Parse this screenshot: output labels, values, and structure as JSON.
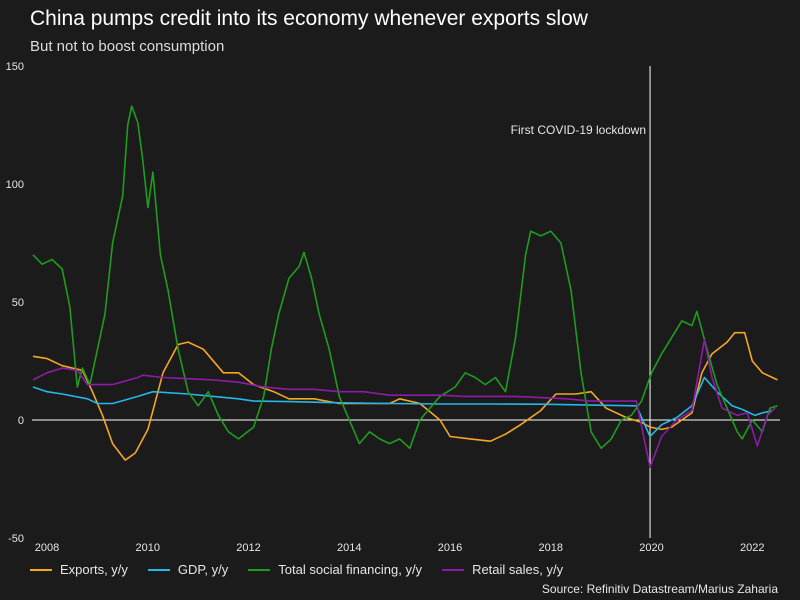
{
  "header": {
    "title": "China pumps credit into its economy whenever exports slow",
    "subtitle": "But not to boost consumption"
  },
  "source": "Source: Refinitiv Datastream/Marius Zaharia",
  "colors": {
    "background": "#1b1b1b",
    "exports": "#f5a623",
    "gdp": "#27b6e8",
    "tsf": "#1e9c1e",
    "retail": "#8c1ca6",
    "axis": "#ffffff"
  },
  "chart_data": {
    "type": "line",
    "title": "China pumps credit into its economy whenever exports slow",
    "subtitle": "But not to boost consumption",
    "xlabel": "",
    "ylabel": "",
    "xlim": [
      2007.9,
      2022.75
    ],
    "ylim": [
      -50,
      150
    ],
    "x_ticks": [
      "2008",
      "2010",
      "2012",
      "2014",
      "2016",
      "2018",
      "2020",
      "2022"
    ],
    "y_ticks": [
      "150",
      "100",
      "50",
      "0",
      "-50"
    ],
    "grid": false,
    "legend_position": "bottom",
    "annotations": [
      {
        "x": 2020.17,
        "text": "First COVID-19 lockdown"
      }
    ],
    "series": [
      {
        "name": "Exports, y/y",
        "color": "#f5a623",
        "points": [
          [
            2007.92,
            27
          ],
          [
            2008.2,
            26
          ],
          [
            2008.5,
            23
          ],
          [
            2008.9,
            21
          ],
          [
            2009.1,
            12
          ],
          [
            2009.3,
            2
          ],
          [
            2009.5,
            -10
          ],
          [
            2009.75,
            -17
          ],
          [
            2009.95,
            -14
          ],
          [
            2010.2,
            -4
          ],
          [
            2010.5,
            20
          ],
          [
            2010.8,
            32
          ],
          [
            2011.0,
            33
          ],
          [
            2011.3,
            30
          ],
          [
            2011.7,
            20
          ],
          [
            2012.0,
            20
          ],
          [
            2012.3,
            15
          ],
          [
            2012.7,
            12
          ],
          [
            2013.0,
            9
          ],
          [
            2013.5,
            9
          ],
          [
            2014.0,
            7
          ],
          [
            2014.5,
            7
          ],
          [
            2015.0,
            7
          ],
          [
            2015.2,
            9
          ],
          [
            2015.6,
            7
          ],
          [
            2016.0,
            0
          ],
          [
            2016.2,
            -7
          ],
          [
            2016.6,
            -8
          ],
          [
            2017.0,
            -9
          ],
          [
            2017.3,
            -6
          ],
          [
            2017.6,
            -2
          ],
          [
            2018.0,
            4
          ],
          [
            2018.3,
            11
          ],
          [
            2018.7,
            11
          ],
          [
            2019.0,
            12
          ],
          [
            2019.3,
            5
          ],
          [
            2019.7,
            1
          ],
          [
            2020.0,
            -1
          ],
          [
            2020.17,
            -3
          ],
          [
            2020.4,
            -4
          ],
          [
            2020.6,
            -3
          ],
          [
            2020.8,
            0
          ],
          [
            2021.0,
            3
          ],
          [
            2021.2,
            20
          ],
          [
            2021.4,
            28
          ],
          [
            2021.7,
            33
          ],
          [
            2021.85,
            37
          ],
          [
            2022.05,
            37
          ],
          [
            2022.2,
            25
          ],
          [
            2022.4,
            20
          ],
          [
            2022.6,
            18
          ],
          [
            2022.7,
            17
          ]
        ]
      },
      {
        "name": "GDP, y/y",
        "color": "#27b6e8",
        "points": [
          [
            2007.92,
            14
          ],
          [
            2008.2,
            12
          ],
          [
            2008.5,
            11
          ],
          [
            2009.0,
            9
          ],
          [
            2009.2,
            7
          ],
          [
            2009.5,
            7
          ],
          [
            2010.0,
            10
          ],
          [
            2010.3,
            12
          ],
          [
            2011.0,
            11
          ],
          [
            2011.5,
            10
          ],
          [
            2012.0,
            9
          ],
          [
            2012.3,
            8
          ],
          [
            2013.0,
            7.8
          ],
          [
            2014.0,
            7.3
          ],
          [
            2015.0,
            7.0
          ],
          [
            2016.0,
            6.8
          ],
          [
            2017.0,
            6.8
          ],
          [
            2018.0,
            6.7
          ],
          [
            2019.0,
            6.3
          ],
          [
            2019.9,
            6.0
          ],
          [
            2020.17,
            -7
          ],
          [
            2020.4,
            -2
          ],
          [
            2020.7,
            1
          ],
          [
            2021.0,
            6
          ],
          [
            2021.25,
            18
          ],
          [
            2021.5,
            12
          ],
          [
            2021.8,
            6
          ],
          [
            2022.0,
            4.5
          ],
          [
            2022.25,
            2
          ],
          [
            2022.4,
            3
          ],
          [
            2022.6,
            4
          ]
        ]
      },
      {
        "name": "Total social financing, y/y",
        "color": "#1e9c1e",
        "points": [
          [
            2007.92,
            70
          ],
          [
            2008.1,
            66
          ],
          [
            2008.3,
            68
          ],
          [
            2008.5,
            64
          ],
          [
            2008.65,
            48
          ],
          [
            2008.8,
            14
          ],
          [
            2008.9,
            22
          ],
          [
            2009.05,
            15
          ],
          [
            2009.2,
            30
          ],
          [
            2009.35,
            45
          ],
          [
            2009.5,
            75
          ],
          [
            2009.7,
            95
          ],
          [
            2009.8,
            125
          ],
          [
            2009.88,
            133
          ],
          [
            2010.0,
            126
          ],
          [
            2010.1,
            110
          ],
          [
            2010.2,
            90
          ],
          [
            2010.3,
            105
          ],
          [
            2010.45,
            70
          ],
          [
            2010.6,
            55
          ],
          [
            2010.8,
            30
          ],
          [
            2011.0,
            12
          ],
          [
            2011.2,
            6
          ],
          [
            2011.4,
            12
          ],
          [
            2011.6,
            2
          ],
          [
            2011.8,
            -5
          ],
          [
            2012.0,
            -8
          ],
          [
            2012.3,
            -3
          ],
          [
            2012.5,
            10
          ],
          [
            2012.65,
            30
          ],
          [
            2012.8,
            45
          ],
          [
            2013.0,
            60
          ],
          [
            2013.2,
            65
          ],
          [
            2013.3,
            71
          ],
          [
            2013.45,
            60
          ],
          [
            2013.6,
            45
          ],
          [
            2013.8,
            30
          ],
          [
            2014.0,
            10
          ],
          [
            2014.2,
            0
          ],
          [
            2014.4,
            -10
          ],
          [
            2014.6,
            -5
          ],
          [
            2014.8,
            -8
          ],
          [
            2015.0,
            -10
          ],
          [
            2015.2,
            -8
          ],
          [
            2015.4,
            -12
          ],
          [
            2015.6,
            0
          ],
          [
            2015.8,
            5
          ],
          [
            2016.0,
            10
          ],
          [
            2016.3,
            14
          ],
          [
            2016.5,
            20
          ],
          [
            2016.7,
            18
          ],
          [
            2016.9,
            15
          ],
          [
            2017.1,
            18
          ],
          [
            2017.3,
            12
          ],
          [
            2017.5,
            35
          ],
          [
            2017.7,
            70
          ],
          [
            2017.8,
            80
          ],
          [
            2018.0,
            78
          ],
          [
            2018.2,
            80
          ],
          [
            2018.4,
            75
          ],
          [
            2018.6,
            55
          ],
          [
            2018.8,
            20
          ],
          [
            2019.0,
            -5
          ],
          [
            2019.2,
            -12
          ],
          [
            2019.4,
            -8
          ],
          [
            2019.6,
            0
          ],
          [
            2019.8,
            2
          ],
          [
            2020.0,
            8
          ],
          [
            2020.2,
            20
          ],
          [
            2020.4,
            28
          ],
          [
            2020.6,
            35
          ],
          [
            2020.8,
            42
          ],
          [
            2021.0,
            40
          ],
          [
            2021.1,
            46
          ],
          [
            2021.3,
            30
          ],
          [
            2021.5,
            15
          ],
          [
            2021.7,
            5
          ],
          [
            2021.9,
            -5
          ],
          [
            2022.0,
            -8
          ],
          [
            2022.2,
            0
          ],
          [
            2022.4,
            -5
          ],
          [
            2022.55,
            5
          ],
          [
            2022.7,
            6
          ]
        ]
      },
      {
        "name": "Retail sales, y/y",
        "color": "#8c1ca6",
        "points": [
          [
            2007.92,
            17
          ],
          [
            2008.2,
            20
          ],
          [
            2008.5,
            22
          ],
          [
            2008.8,
            21
          ],
          [
            2009.0,
            15
          ],
          [
            2009.5,
            15
          ],
          [
            2010.0,
            18
          ],
          [
            2010.1,
            19
          ],
          [
            2010.5,
            18
          ],
          [
            2011.0,
            17.5
          ],
          [
            2011.5,
            17
          ],
          [
            2012.0,
            16
          ],
          [
            2012.5,
            14
          ],
          [
            2013.0,
            13
          ],
          [
            2013.5,
            13
          ],
          [
            2014.0,
            12
          ],
          [
            2014.5,
            12
          ],
          [
            2015.0,
            10.5
          ],
          [
            2015.5,
            10.5
          ],
          [
            2016.0,
            10.5
          ],
          [
            2016.5,
            10
          ],
          [
            2017.0,
            10
          ],
          [
            2017.5,
            10
          ],
          [
            2018.0,
            9.5
          ],
          [
            2018.5,
            9
          ],
          [
            2019.0,
            8
          ],
          [
            2019.5,
            8
          ],
          [
            2019.9,
            8
          ],
          [
            2020.17,
            -20
          ],
          [
            2020.4,
            -7
          ],
          [
            2020.7,
            0
          ],
          [
            2021.0,
            4
          ],
          [
            2021.25,
            34
          ],
          [
            2021.4,
            18
          ],
          [
            2021.6,
            5
          ],
          [
            2021.9,
            2
          ],
          [
            2022.1,
            3
          ],
          [
            2022.3,
            -11
          ],
          [
            2022.5,
            2
          ],
          [
            2022.65,
            5
          ]
        ]
      }
    ]
  }
}
